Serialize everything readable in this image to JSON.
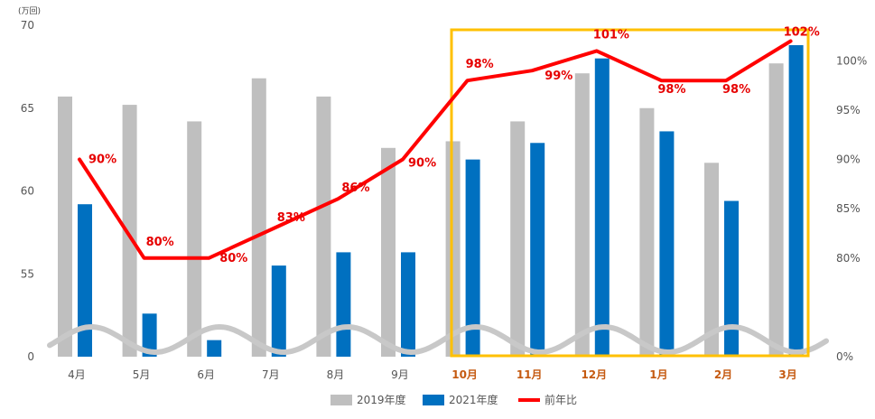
{
  "chart_data": {
    "type": "bar",
    "unit_label": "(万回)",
    "categories": [
      "4月",
      "5月",
      "6月",
      "7月",
      "8月",
      "9月",
      "10月",
      "11月",
      "12月",
      "1月",
      "2月",
      "3月"
    ],
    "highlight_categories": [
      "10月",
      "11月",
      "12月",
      "1月",
      "2月",
      "3月"
    ],
    "series": [
      {
        "name": "2019年度",
        "type": "bar",
        "color": "#bfbfbf",
        "values": [
          65.7,
          65.2,
          64.2,
          66.8,
          65.7,
          62.6,
          63.0,
          64.2,
          67.1,
          65.0,
          61.7,
          67.7
        ]
      },
      {
        "name": "2021年度",
        "type": "bar",
        "color": "#0070c0",
        "values": [
          59.2,
          52.6,
          51.0,
          55.5,
          56.3,
          56.3,
          61.9,
          62.9,
          68.0,
          63.6,
          59.4,
          68.8
        ]
      },
      {
        "name": "前年比",
        "type": "line",
        "color": "#ff0000",
        "axis": "right",
        "values": [
          90,
          80,
          80,
          83,
          86,
          90,
          98,
          99,
          101,
          98,
          98,
          102
        ],
        "labels": [
          "90%",
          "80%",
          "80%",
          "83%",
          "86%",
          "90%",
          "98%",
          "99%",
          "101%",
          "98%",
          "98%",
          "102%"
        ]
      }
    ],
    "y_left": {
      "ticks": [
        "0",
        "55",
        "60",
        "65",
        "70"
      ]
    },
    "y_right": {
      "ticks": [
        "0%",
        "80%",
        "85%",
        "90%",
        "95%",
        "100%"
      ]
    },
    "legend_position": "bottom",
    "highlight_box_color": "#ffc000"
  }
}
